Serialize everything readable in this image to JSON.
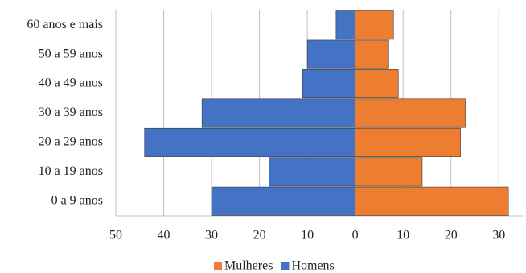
{
  "chart_data": {
    "type": "bar",
    "orientation": "horizontal",
    "stacked": true,
    "categories": [
      "60 anos e mais",
      "50 a 59 anos",
      "40 a 49 anos",
      "30 a 39 anos",
      "20 a 29 anos",
      "10 a 19 anos",
      "0 a 9 anos"
    ],
    "series": [
      {
        "name": "Mulheres",
        "color": "#ed7d31",
        "values": [
          8,
          7,
          9,
          23,
          22,
          14,
          32
        ]
      },
      {
        "name": "Homens",
        "color": "#4472c4",
        "values": [
          -4,
          -10,
          -11,
          -32,
          -44,
          -18,
          -30
        ]
      }
    ],
    "xlim": [
      -50,
      35
    ],
    "xticks": [
      {
        "value": -50,
        "label": "50"
      },
      {
        "value": -40,
        "label": "40"
      },
      {
        "value": -30,
        "label": "30"
      },
      {
        "value": -20,
        "label": "20"
      },
      {
        "value": -10,
        "label": "10"
      },
      0,
      10,
      20,
      30
    ],
    "grid": true,
    "legend": "bottom"
  }
}
